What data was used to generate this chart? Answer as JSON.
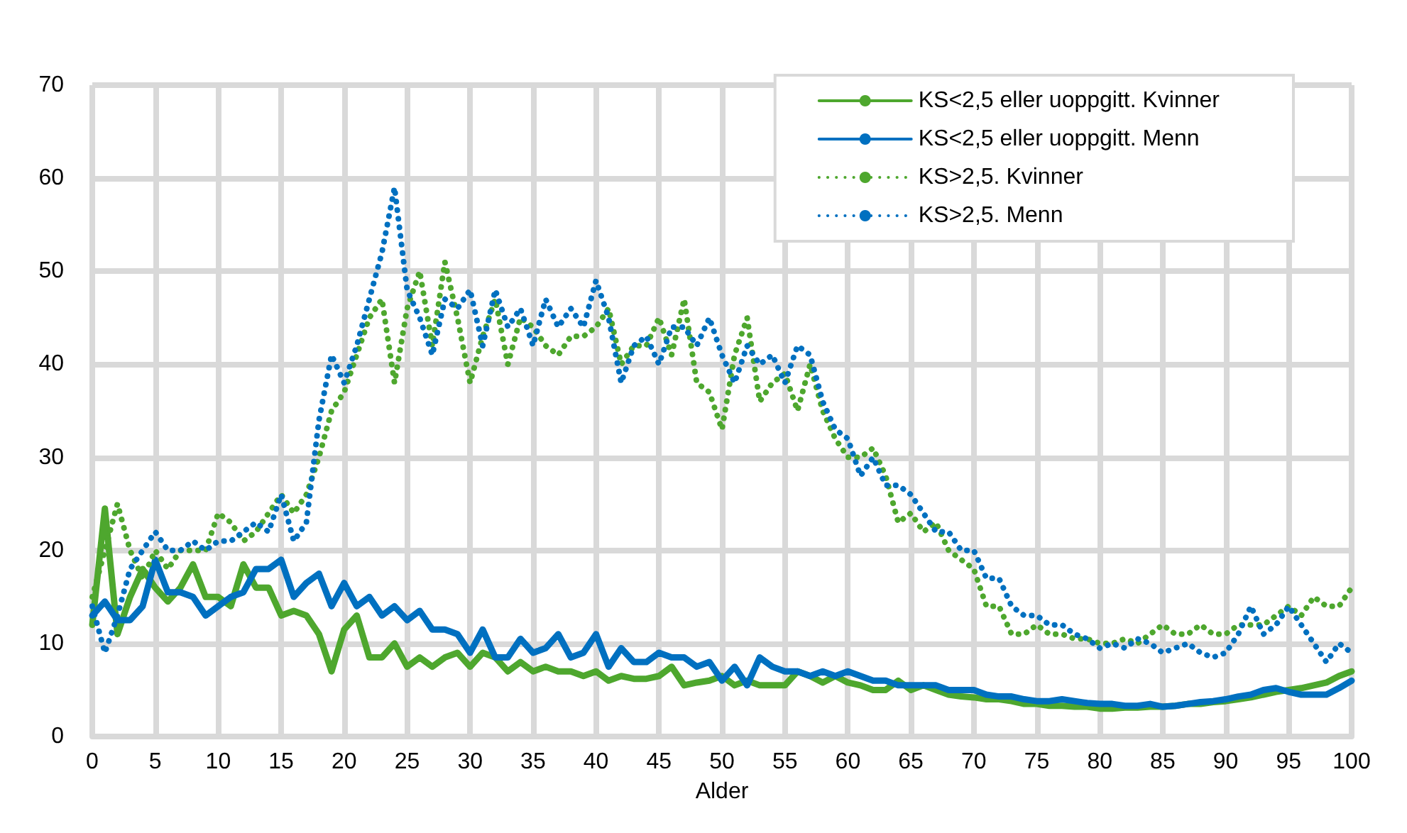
{
  "chart_data": {
    "type": "line",
    "xlabel": "Alder",
    "x": [
      0,
      1,
      2,
      3,
      4,
      5,
      6,
      7,
      8,
      9,
      10,
      11,
      12,
      13,
      14,
      15,
      16,
      17,
      18,
      19,
      20,
      21,
      22,
      23,
      24,
      25,
      26,
      27,
      28,
      29,
      30,
      31,
      32,
      33,
      34,
      35,
      36,
      37,
      38,
      39,
      40,
      41,
      42,
      43,
      44,
      45,
      46,
      47,
      48,
      49,
      50,
      51,
      52,
      53,
      54,
      55,
      56,
      57,
      58,
      59,
      60,
      61,
      62,
      63,
      64,
      65,
      66,
      67,
      68,
      69,
      70,
      71,
      72,
      73,
      74,
      75,
      76,
      77,
      78,
      79,
      80,
      81,
      82,
      83,
      84,
      85,
      86,
      87,
      88,
      89,
      90,
      91,
      92,
      93,
      94,
      95,
      96,
      97,
      98,
      99,
      100
    ],
    "xlim": [
      0,
      100
    ],
    "xticks": [
      0,
      5,
      10,
      15,
      20,
      25,
      30,
      35,
      40,
      45,
      50,
      55,
      60,
      65,
      70,
      75,
      80,
      85,
      90,
      95,
      100
    ],
    "ylim": [
      0,
      70
    ],
    "yticks": [
      0,
      10,
      20,
      30,
      40,
      50,
      60,
      70
    ],
    "grid": true,
    "legend": "top right",
    "marker": "none",
    "series": [
      {
        "name": "KS<2,5 eller uoppgitt. Kvinner",
        "color": "#4ea72e",
        "line_style": "solid",
        "values": [
          12,
          24.5,
          11,
          15,
          18,
          16,
          14.5,
          16,
          18.5,
          15,
          15,
          14,
          18.5,
          16,
          16,
          13,
          13.5,
          13,
          11,
          7,
          11.5,
          13,
          8.5,
          8.5,
          10,
          7.5,
          8.5,
          7.5,
          8.5,
          9,
          7.5,
          9,
          8.5,
          7,
          8,
          7,
          7.5,
          7,
          7,
          6.5,
          7,
          6,
          6.5,
          6.2,
          6.2,
          6.5,
          7.5,
          5.5,
          5.8,
          6,
          6.5,
          5.5,
          6,
          5.5,
          5.5,
          5.5,
          7,
          6.5,
          5.8,
          6.5,
          5.8,
          5.5,
          5,
          5,
          6,
          5,
          5.5,
          5,
          4.5,
          4.3,
          4.2,
          4,
          4,
          3.8,
          3.5,
          3.5,
          3.3,
          3.3,
          3.2,
          3.2,
          3,
          3,
          3.1,
          3.1,
          3.2,
          3.2,
          3.3,
          3.5,
          3.5,
          3.7,
          3.8,
          4,
          4.2,
          4.5,
          4.8,
          5,
          5.2,
          5.5,
          5.8,
          6.5,
          7
        ]
      },
      {
        "name": "KS<2,5 eller uoppgitt. Menn",
        "color": "#0070c0",
        "line_style": "solid",
        "values": [
          13,
          14.5,
          12.5,
          12.5,
          14,
          19,
          15.5,
          15.5,
          15,
          13,
          14,
          15,
          15.5,
          18,
          18,
          19,
          15,
          16.5,
          17.5,
          14,
          16.5,
          14,
          15,
          13,
          14,
          12.5,
          13.5,
          11.5,
          11.5,
          11,
          9,
          11.5,
          8.5,
          8.5,
          10.5,
          9,
          9.5,
          11,
          8.5,
          9,
          11,
          7.5,
          9.5,
          8,
          8,
          9,
          8.5,
          8.5,
          7.5,
          8,
          6,
          7.5,
          5.5,
          8.5,
          7.5,
          7,
          7,
          6.5,
          7,
          6.5,
          7,
          6.5,
          6,
          6,
          5.5,
          5.5,
          5.5,
          5.5,
          5,
          5,
          5,
          4.5,
          4.3,
          4.3,
          4,
          3.8,
          3.8,
          4,
          3.8,
          3.6,
          3.5,
          3.5,
          3.3,
          3.3,
          3.5,
          3.2,
          3.3,
          3.5,
          3.7,
          3.8,
          4,
          4.3,
          4.5,
          5,
          5.2,
          4.8,
          4.5,
          4.5,
          4.5,
          5.2,
          6
        ]
      },
      {
        "name": "KS>2,5. Kvinner",
        "color": "#4ea72e",
        "line_style": "dotted",
        "values": [
          15,
          20,
          25,
          20,
          17,
          20,
          18,
          20,
          20,
          20,
          24,
          23,
          21,
          22,
          24,
          26,
          24,
          26,
          30,
          35,
          37,
          41,
          45,
          47,
          38,
          46,
          50,
          42,
          51,
          45,
          38,
          43,
          47,
          40,
          45,
          44,
          42,
          41,
          43,
          43,
          44,
          46,
          40,
          42,
          42,
          45,
          41,
          47,
          38,
          37,
          33,
          41,
          45,
          36,
          38,
          39,
          35,
          40,
          35,
          32,
          30,
          30,
          31,
          28,
          23,
          24,
          22,
          23,
          20,
          19,
          18,
          14,
          14,
          11,
          11,
          12,
          11,
          11,
          10.5,
          10.5,
          10,
          10,
          10.5,
          10,
          11,
          12,
          11,
          11,
          12,
          11,
          11,
          12,
          12,
          12,
          13,
          14,
          13,
          15,
          14,
          14,
          16
        ]
      },
      {
        "name": "KS>2,5. Menn",
        "color": "#0070c0",
        "line_style": "dotted",
        "values": [
          14,
          9,
          13,
          18,
          20,
          22,
          20,
          20,
          21,
          20,
          21,
          21,
          22,
          23,
          22,
          26,
          21,
          23,
          34,
          41,
          38,
          42,
          47,
          52,
          59,
          48,
          45,
          41,
          47,
          46,
          48,
          42,
          48,
          44,
          46,
          42,
          47,
          44,
          46,
          44,
          49,
          45,
          38,
          42,
          43,
          40,
          44,
          44,
          42,
          45,
          41,
          38,
          42,
          40,
          41,
          38,
          42,
          41,
          36,
          33,
          32,
          28,
          30,
          27,
          27,
          26,
          24,
          22,
          22,
          20,
          20,
          17,
          17,
          14,
          13,
          13,
          12,
          12,
          11,
          10.5,
          9.5,
          10,
          9.5,
          10.5,
          10,
          9,
          9.5,
          10,
          9,
          8.5,
          9,
          11,
          14,
          11,
          12,
          14,
          12,
          10,
          8,
          10,
          9
        ]
      }
    ]
  }
}
